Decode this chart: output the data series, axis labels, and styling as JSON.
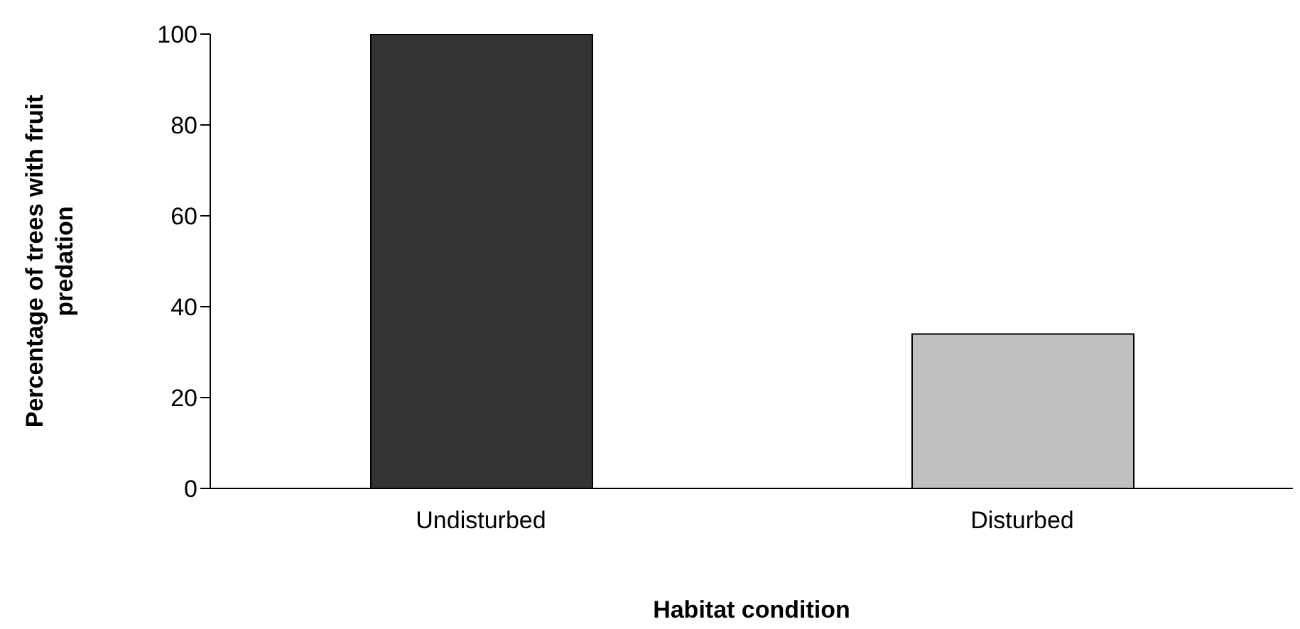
{
  "chart_data": {
    "type": "bar",
    "xlabel": "Habitat condition",
    "ylabel": "Percentage of trees with fruit predation",
    "categories": [
      "Undisturbed",
      "Disturbed"
    ],
    "values": [
      100,
      34
    ],
    "colors": [
      "#333333",
      "#c0c0c0"
    ],
    "ylim": [
      0,
      100
    ],
    "yticks": [
      0,
      20,
      40,
      60,
      80,
      100
    ],
    "grid": false,
    "legend": false
  }
}
